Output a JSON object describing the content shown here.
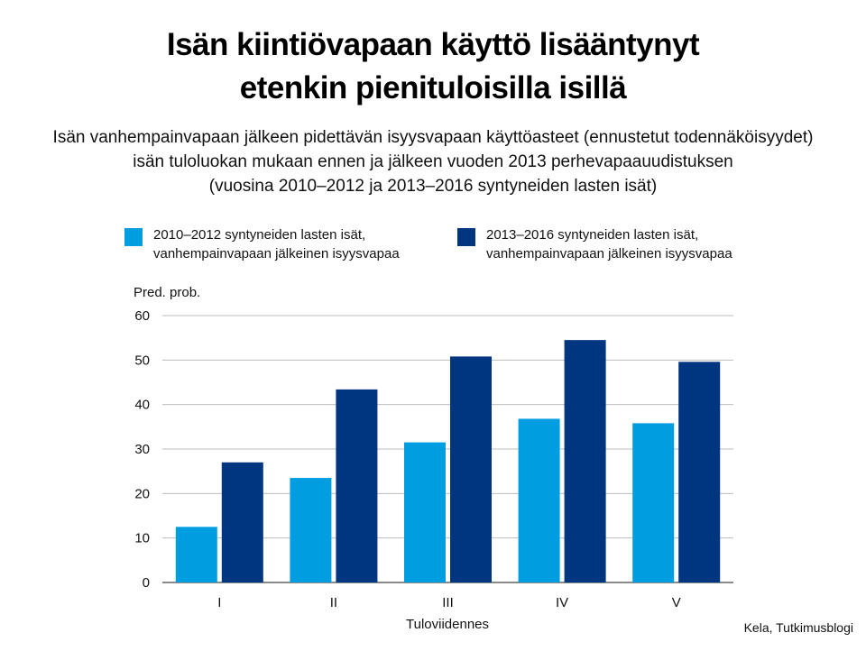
{
  "chart_data": {
    "type": "bar",
    "title_lines": [
      "Isän kiintiövapaan käyttö lisääntynyt",
      "etenkin pienituloisilla isillä"
    ],
    "subtitle_lines": [
      "Isän vanhempainvapaan jälkeen pidettävän isyysvapaan käyttöasteet (ennustetut todennäköisyydet)",
      "isän tuloluokan mukaan ennen ja jälkeen vuoden 2013 perhevapaauudistuksen",
      "(vuosina 2010–2012 ja 2013–2016 syntyneiden lasten isät)"
    ],
    "ylabel": "Pred. prob.",
    "xlabel": "Tuloviidennes",
    "ylim": [
      0,
      60
    ],
    "yticks": [
      0,
      10,
      20,
      30,
      40,
      50,
      60
    ],
    "grid": true,
    "legend_position": "top",
    "categories": [
      "I",
      "II",
      "III",
      "IV",
      "V"
    ],
    "series": [
      {
        "name_lines": [
          "2010–2012 syntyneiden lasten isät,",
          "vanhempainvapaan jälkeinen isyysvapaa"
        ],
        "color": "#009ee0",
        "values": [
          12.5,
          23.5,
          31.5,
          36.8,
          35.8
        ]
      },
      {
        "name_lines": [
          "2013–2016 syntyneiden lasten isät,",
          "vanhempainvapaan jälkeinen isyysvapaa"
        ],
        "color": "#003580",
        "values": [
          27,
          43.4,
          50.8,
          54.5,
          49.6
        ]
      }
    ]
  },
  "source": "Kela, Tutkimusblogi"
}
